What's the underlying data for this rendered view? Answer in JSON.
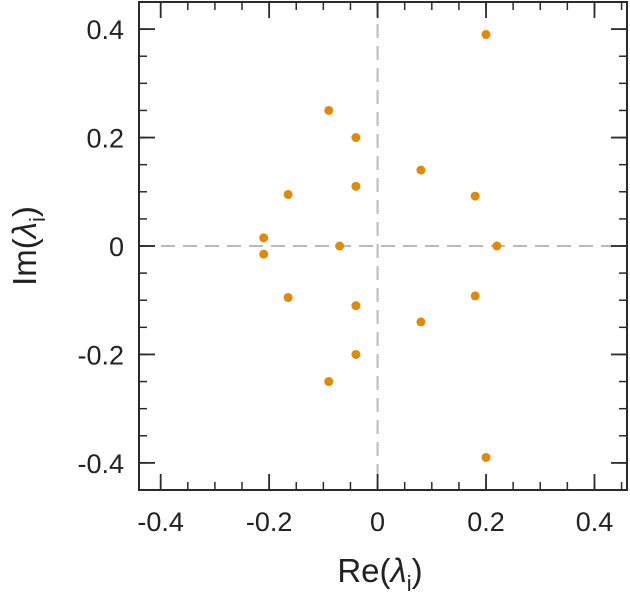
{
  "chart_data": {
    "type": "scatter",
    "title": "",
    "xlabel": {
      "main": "Re(",
      "symbol": "λ",
      "sub": "i",
      "close": ")"
    },
    "ylabel": {
      "main": "Im(",
      "symbol": "λ",
      "sub": "i",
      "close": ")"
    },
    "xlim": [
      -0.44,
      0.46
    ],
    "ylim": [
      -0.45,
      0.45
    ],
    "x_ticks": [
      -0.4,
      -0.2,
      0,
      0.2,
      0.4
    ],
    "x_tick_labels": [
      "-0.4",
      "-0.2",
      "0",
      "0.2",
      "0.4"
    ],
    "y_ticks": [
      -0.4,
      -0.2,
      0,
      0.2,
      0.4
    ],
    "y_tick_labels": [
      "-0.4",
      "-0.2",
      "0",
      "0.2",
      "0.4"
    ],
    "minor_tick_step": 0.05,
    "reference_lines": {
      "x": 0,
      "y": 0,
      "style": "dashed"
    },
    "grid": false,
    "legend": "none",
    "marker_color": "#e08a0b",
    "series": [
      {
        "points": [
          {
            "x": 0.2,
            "y": 0.39
          },
          {
            "x": 0.2,
            "y": -0.39
          },
          {
            "x": -0.09,
            "y": 0.25
          },
          {
            "x": -0.09,
            "y": -0.25
          },
          {
            "x": -0.04,
            "y": 0.2
          },
          {
            "x": -0.04,
            "y": -0.2
          },
          {
            "x": 0.08,
            "y": 0.14
          },
          {
            "x": 0.08,
            "y": -0.14
          },
          {
            "x": -0.04,
            "y": 0.11
          },
          {
            "x": -0.04,
            "y": -0.11
          },
          {
            "x": -0.165,
            "y": 0.095
          },
          {
            "x": -0.165,
            "y": -0.095
          },
          {
            "x": 0.18,
            "y": 0.092
          },
          {
            "x": 0.18,
            "y": -0.092
          },
          {
            "x": -0.21,
            "y": 0.015
          },
          {
            "x": -0.21,
            "y": -0.015
          },
          {
            "x": -0.07,
            "y": 0.0
          },
          {
            "x": 0.22,
            "y": 0.0
          }
        ]
      }
    ]
  },
  "colors": {
    "axis": "#2b2b2b",
    "reference_line": "#bbbbbb",
    "text": "#222222"
  }
}
